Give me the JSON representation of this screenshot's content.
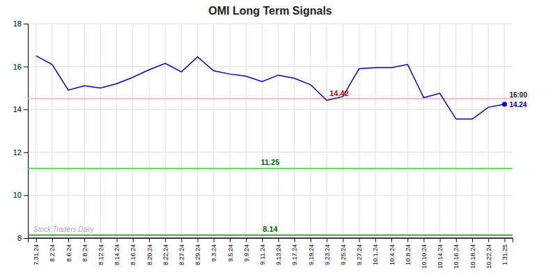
{
  "chart_data": {
    "type": "line",
    "title": "OMI Long Term Signals",
    "categories": [
      "7.31.24",
      "8.2.24",
      "8.6.24",
      "8.8.24",
      "8.12.24",
      "8.14.24",
      "8.16.24",
      "8.20.24",
      "8.22.24",
      "8.27.24",
      "8.29.24",
      "9.3.24",
      "9.5.24",
      "9.9.24",
      "9.11.24",
      "9.13.24",
      "9.17.24",
      "9.19.24",
      "9.23.24",
      "9.25.24",
      "9.27.24",
      "10.1.24",
      "10.4.24",
      "10.8.24",
      "10.10.24",
      "10.14.24",
      "10.16.24",
      "10.18.24",
      "10.22.24",
      "1.31.25"
    ],
    "values": [
      16.5,
      16.1,
      14.9,
      15.1,
      15.0,
      15.2,
      15.5,
      15.85,
      16.15,
      15.75,
      16.45,
      15.8,
      15.65,
      15.55,
      15.3,
      15.6,
      15.45,
      15.15,
      14.42,
      14.6,
      15.9,
      15.95,
      15.95,
      16.1,
      14.55,
      14.75,
      13.55,
      13.55,
      14.1,
      14.24
    ],
    "color": "#0000cc",
    "ylim": [
      8,
      18
    ],
    "yticks": [
      8,
      10,
      12,
      14,
      16,
      18
    ],
    "grid": true,
    "reference_lines": [
      {
        "value": 14.5,
        "color": "#ffb0b0"
      },
      {
        "value": 11.25,
        "color": "#33cc33"
      },
      {
        "value": 8.14,
        "color": "#009900"
      },
      {
        "value": 8.0,
        "color": "#444444"
      }
    ],
    "annotations": [
      {
        "text": "14.42",
        "value": 14.42,
        "category": "9.23.24",
        "color": "#cc0000"
      },
      {
        "text": "11.25",
        "value": 11.25,
        "color": "#006600"
      },
      {
        "text": "8.14",
        "value": 8.14,
        "color": "#006600"
      },
      {
        "text": "16:00",
        "category": "1.31.25"
      },
      {
        "text": "14.24",
        "value": 14.24,
        "category": "1.31.25",
        "color": "#0000cc",
        "marker": "circle"
      },
      {
        "text": "Stock Traders Daily"
      }
    ]
  }
}
